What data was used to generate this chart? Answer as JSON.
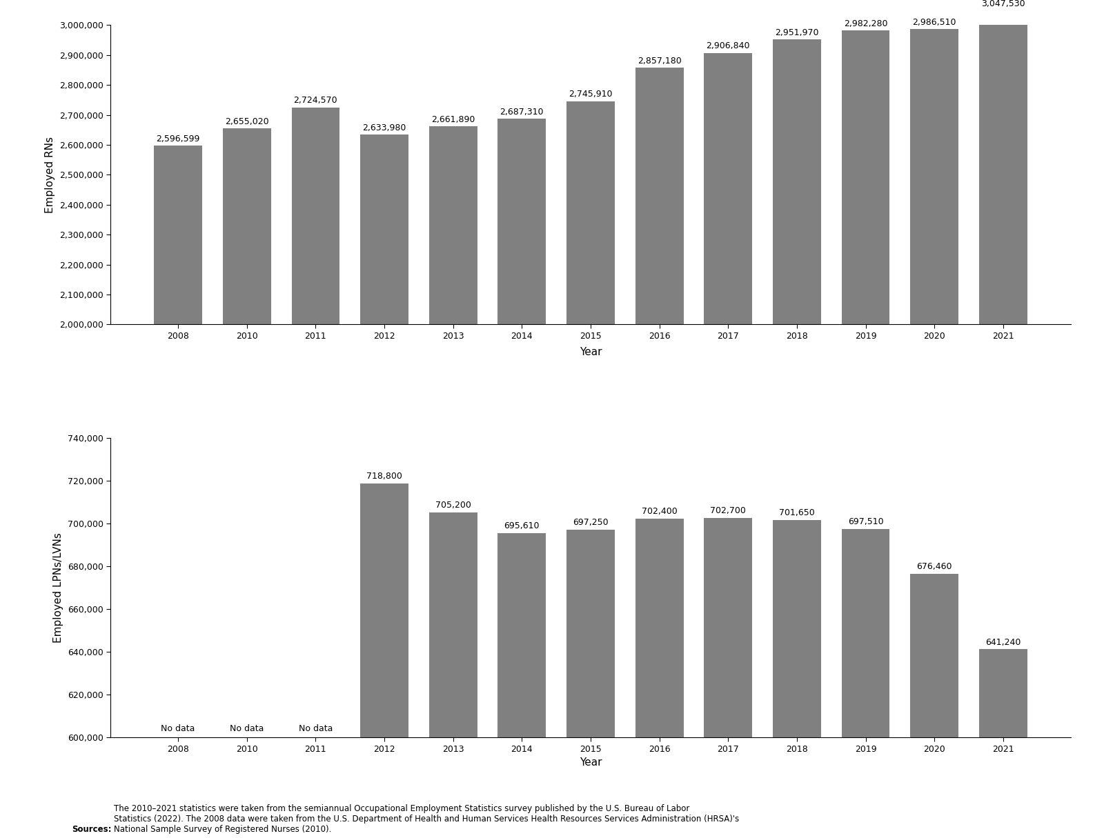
{
  "years": [
    2008,
    2010,
    2011,
    2012,
    2013,
    2014,
    2015,
    2016,
    2017,
    2018,
    2019,
    2020,
    2021
  ],
  "rn_values": [
    2596599,
    2655020,
    2724570,
    2633980,
    2661890,
    2687310,
    2745910,
    2857180,
    2906840,
    2951970,
    2982280,
    2986510,
    3047530
  ],
  "rn_labels": [
    "2,596,599",
    "2,655,020",
    "2,724,570",
    "2,633,980",
    "2,661,890",
    "2,687,310",
    "2,745,910",
    "2,857,180",
    "2,906,840",
    "2,951,970",
    "2,982,280",
    "2,986,510",
    "3,047,530"
  ],
  "lpn_values": [
    null,
    null,
    null,
    718800,
    705200,
    695610,
    697250,
    702400,
    702700,
    701650,
    697510,
    676460,
    641240
  ],
  "lpn_labels": [
    "No data",
    "No data",
    "No data",
    "718,800",
    "705,200",
    "695,610",
    "697,250",
    "702,400",
    "702,700",
    "701,650",
    "697,510",
    "676,460",
    "641,240"
  ],
  "bar_color": "#808080",
  "rn_ylabel": "Employed RNs",
  "lpn_ylabel": "Employed LPNs/LVNs",
  "xlabel": "Year",
  "rn_ylim": [
    2000000,
    3000000
  ],
  "rn_yticks": [
    2000000,
    2100000,
    2200000,
    2300000,
    2400000,
    2500000,
    2600000,
    2700000,
    2800000,
    2900000,
    3000000
  ],
  "lpn_ylim": [
    600000,
    740000
  ],
  "lpn_yticks": [
    600000,
    620000,
    640000,
    660000,
    680000,
    700000,
    720000,
    740000
  ],
  "source_text_bold": "Sources:",
  "source_text_normal": "The 2010–2021 statistics were taken from the semiannual Occupational Employment Statistics survey published by the U.S. Bureau of Labor\nStatistics (2022). The 2008 data were taken from the U.S. Department of Health and Human Services Health Resources Services Administration (HRSA)'s\nNational Sample Survey of Registered Nurses (2010).",
  "label_fontsize": 9,
  "axis_label_fontsize": 11,
  "tick_fontsize": 9,
  "source_fontsize": 8.5,
  "bar_width": 0.7
}
